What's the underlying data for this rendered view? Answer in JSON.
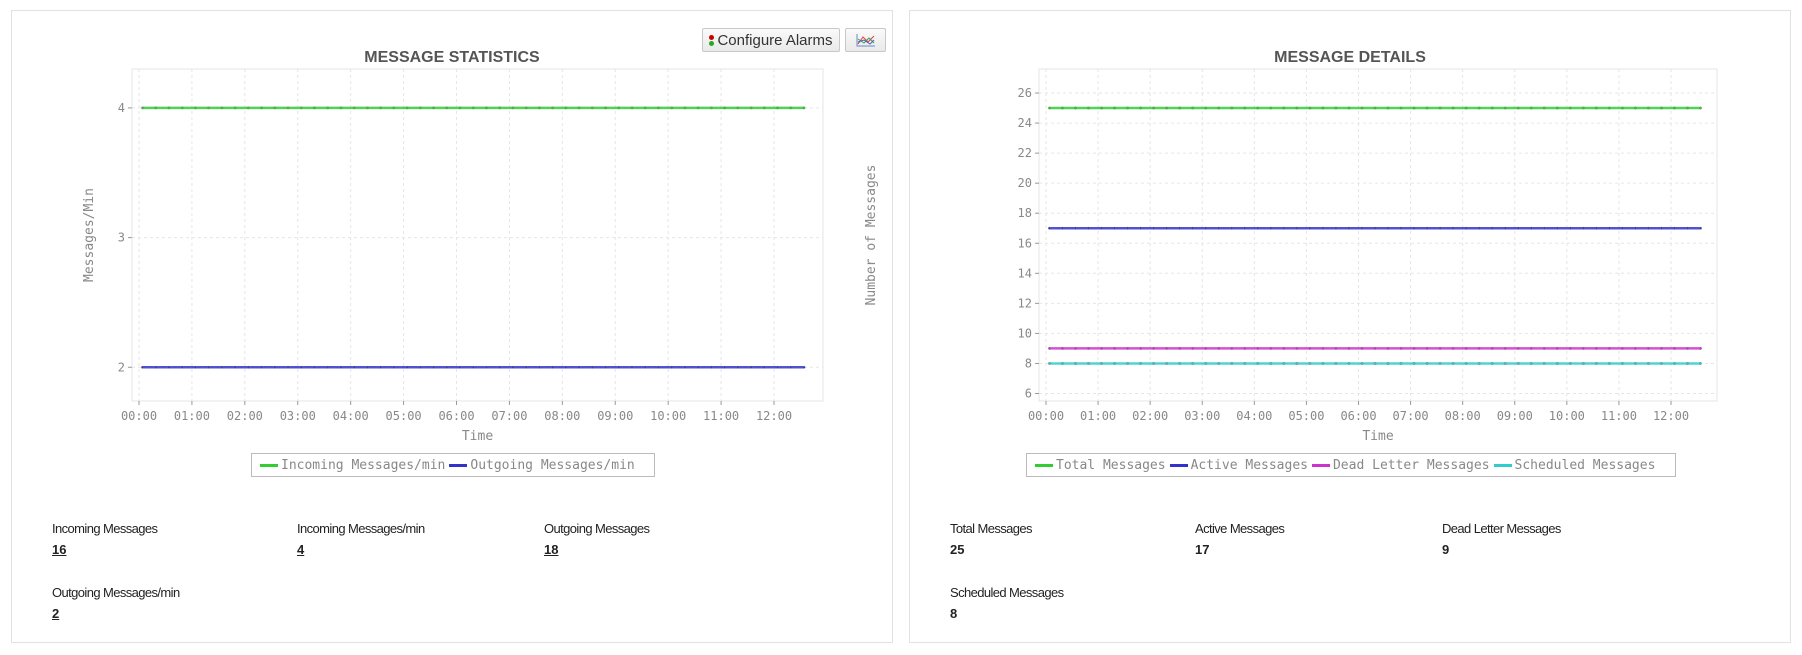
{
  "left_panel": {
    "title": "MESSAGE STATISTICS",
    "configure_alarms_label": "Configure Alarms",
    "traffic-light-icon": "traffic-light-icon",
    "chart_button_icon": "line-chart-icon",
    "stats": [
      {
        "label": "Incoming Messages",
        "value": "16"
      },
      {
        "label": "Incoming Messages/min",
        "value": "4"
      },
      {
        "label": "Outgoing Messages",
        "value": "18"
      },
      {
        "label": "Outgoing Messages/min",
        "value": "2"
      }
    ]
  },
  "right_panel": {
    "title": "MESSAGE DETAILS",
    "stats": [
      {
        "label": "Total Messages",
        "value": "25"
      },
      {
        "label": "Active Messages",
        "value": "17"
      },
      {
        "label": "Dead Letter Messages",
        "value": "9"
      },
      {
        "label": "Scheduled Messages",
        "value": "8"
      }
    ]
  },
  "chart_data": [
    {
      "type": "line",
      "title": "MESSAGE STATISTICS",
      "xlabel": "Time",
      "ylabel": "Messages/Min",
      "x_ticks": [
        "00:00",
        "01:00",
        "02:00",
        "03:00",
        "04:00",
        "05:00",
        "06:00",
        "07:00",
        "08:00",
        "09:00",
        "10:00",
        "11:00",
        "12:00"
      ],
      "y_ticks": [
        2,
        3,
        4
      ],
      "ylim": [
        1.74,
        4.3
      ],
      "x_range": [
        "00:04",
        "12:34"
      ],
      "sample_interval_min": 15,
      "grid": true,
      "legend": "bottom",
      "series": [
        {
          "name": "Incoming Messages/min",
          "value": 4,
          "color": "#33cc33"
        },
        {
          "name": "Outgoing Messages/min",
          "value": 2,
          "color": "#3333cc"
        }
      ]
    },
    {
      "type": "line",
      "title": "MESSAGE DETAILS",
      "xlabel": "Time",
      "ylabel": "Number of Messages",
      "x_ticks": [
        "00:00",
        "01:00",
        "02:00",
        "03:00",
        "04:00",
        "05:00",
        "06:00",
        "07:00",
        "08:00",
        "09:00",
        "10:00",
        "11:00",
        "12:00"
      ],
      "y_ticks": [
        6,
        8,
        10,
        12,
        14,
        16,
        18,
        20,
        22,
        24,
        26
      ],
      "ylim": [
        5.5,
        27.6
      ],
      "x_range": [
        "00:04",
        "12:34"
      ],
      "sample_interval_min": 15,
      "grid": true,
      "legend": "bottom",
      "series": [
        {
          "name": "Total Messages",
          "value": 25,
          "color": "#33cc33"
        },
        {
          "name": "Active Messages",
          "value": 17,
          "color": "#3333cc"
        },
        {
          "name": "Dead Letter Messages",
          "value": 9,
          "color": "#cc33cc"
        },
        {
          "name": "Scheduled Messages",
          "value": 8,
          "color": "#33cccc"
        }
      ]
    }
  ]
}
